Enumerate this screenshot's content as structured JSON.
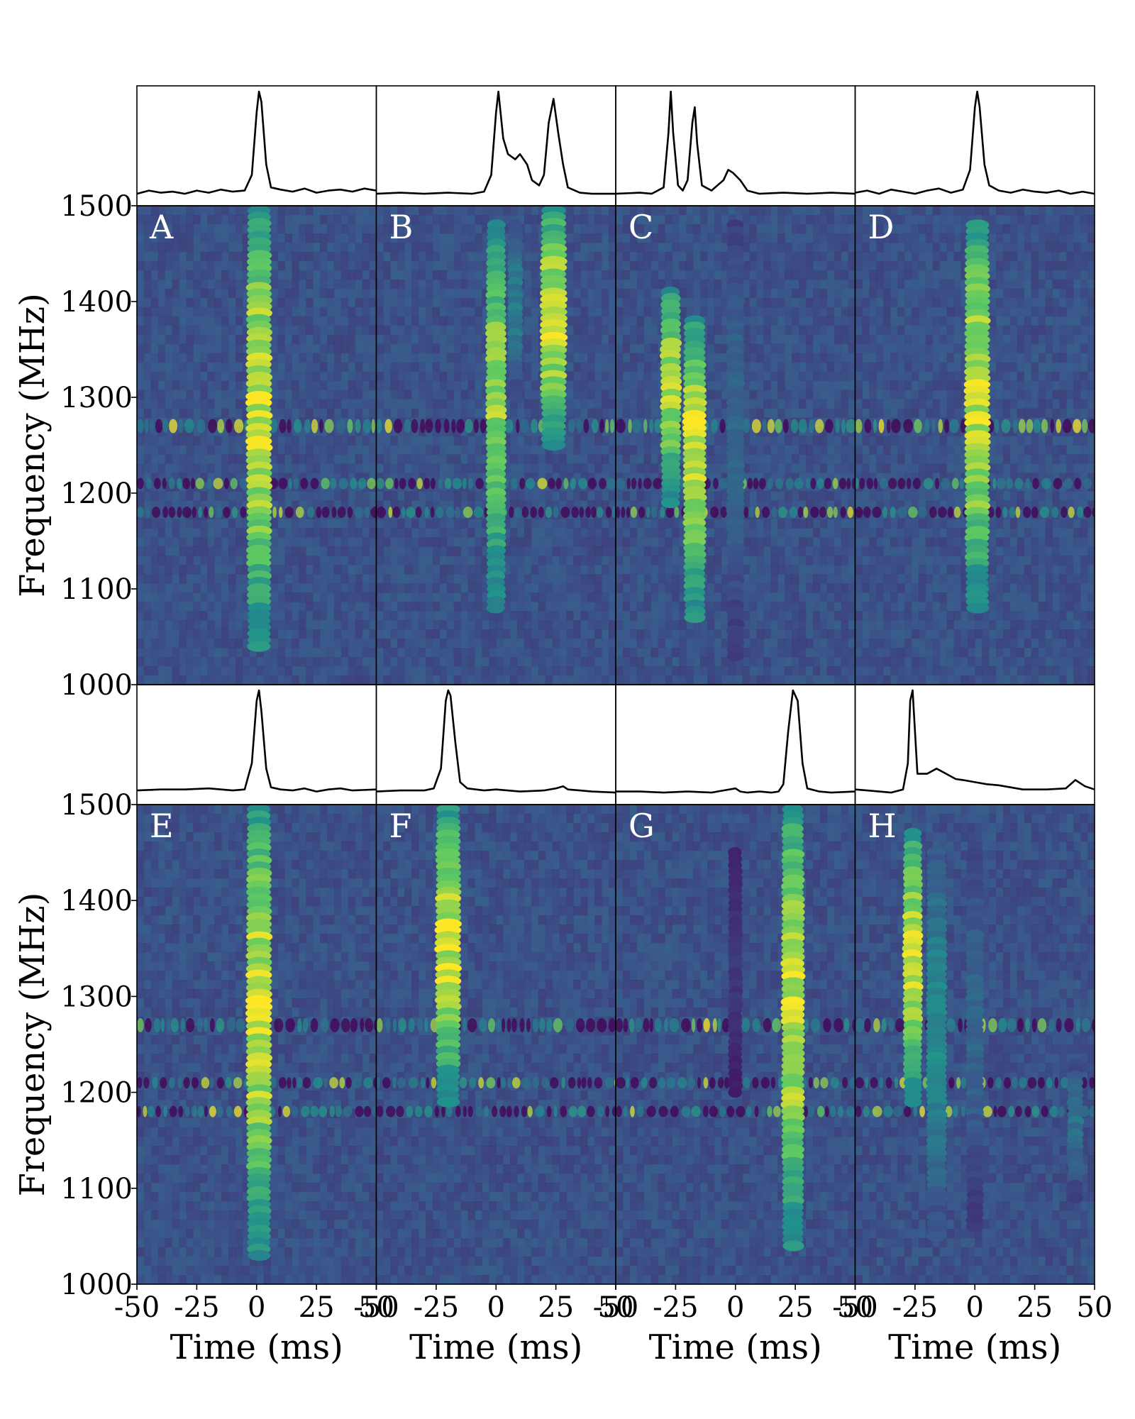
{
  "chart_data": {
    "type": "heatmap",
    "colormap": [
      "#440154",
      "#3b528b",
      "#21918c",
      "#5ec962",
      "#fde725"
    ],
    "background_color": "#3a5e8c",
    "x_axis": {
      "label": "Time (ms)",
      "range": [
        -50,
        50
      ],
      "ticks": [
        -50,
        -25,
        0,
        25,
        50
      ],
      "tick_labels": [
        "-50",
        "-25",
        "0",
        "25",
        "50"
      ]
    },
    "y_axis": {
      "label": "Frequency (MHz)",
      "range": [
        1000,
        1500
      ],
      "ticks": [
        1000,
        1100,
        1200,
        1300,
        1400,
        1500
      ],
      "tick_labels": [
        "1000",
        "1100",
        "1200",
        "1300",
        "1400",
        "1500"
      ]
    },
    "rfi_frequencies_mhz": [
      1270,
      1210,
      1180
    ],
    "panels": [
      {
        "label": "A",
        "components": [
          {
            "t": 1,
            "f_low": 1040,
            "f_high": 1495,
            "peak": 1.0,
            "width": 2.2
          }
        ],
        "profile_x": [
          -50,
          -45,
          -40,
          -35,
          -30,
          -25,
          -20,
          -15,
          -10,
          -5,
          -2,
          0,
          1,
          2,
          4,
          6,
          10,
          15,
          20,
          25,
          30,
          35,
          40,
          45,
          50
        ],
        "profile_y": [
          0.02,
          0.05,
          0.03,
          0.04,
          0.02,
          0.05,
          0.03,
          0.06,
          0.04,
          0.05,
          0.2,
          0.8,
          1.0,
          0.9,
          0.3,
          0.08,
          0.06,
          0.04,
          0.07,
          0.03,
          0.05,
          0.06,
          0.04,
          0.07,
          0.05
        ]
      },
      {
        "label": "B",
        "components": [
          {
            "t": 0,
            "f_low": 1080,
            "f_high": 1480,
            "peak": 0.9,
            "width": 1.8
          },
          {
            "t": 8,
            "f_low": 1300,
            "f_high": 1480,
            "peak": 0.45,
            "width": 1.5
          },
          {
            "t": 24,
            "f_low": 1250,
            "f_high": 1495,
            "peak": 1.0,
            "width": 2.3
          }
        ],
        "profile_x": [
          -50,
          -40,
          -30,
          -20,
          -10,
          -5,
          -2,
          0,
          1,
          3,
          5,
          8,
          10,
          13,
          15,
          18,
          20,
          22,
          24,
          26,
          28,
          30,
          35,
          40,
          50
        ],
        "profile_y": [
          0.02,
          0.03,
          0.02,
          0.03,
          0.02,
          0.04,
          0.2,
          0.8,
          1.0,
          0.55,
          0.4,
          0.35,
          0.4,
          0.3,
          0.15,
          0.1,
          0.2,
          0.7,
          0.93,
          0.6,
          0.3,
          0.08,
          0.03,
          0.02,
          0.02
        ]
      },
      {
        "label": "C",
        "components": [
          {
            "t": -27,
            "f_low": 1190,
            "f_high": 1410,
            "peak": 0.95,
            "width": 1.8
          },
          {
            "t": -17,
            "f_low": 1070,
            "f_high": 1380,
            "peak": 1.0,
            "width": 2.0
          },
          {
            "t": 0,
            "f_low": 1030,
            "f_high": 1480,
            "peak": 0.35,
            "width": 1.8
          }
        ],
        "profile_x": [
          -50,
          -40,
          -35,
          -30,
          -28,
          -27,
          -26,
          -24,
          -22,
          -20,
          -18,
          -17,
          -16,
          -14,
          -10,
          -5,
          -3,
          -1,
          2,
          5,
          10,
          20,
          30,
          40,
          50
        ],
        "profile_y": [
          0.02,
          0.03,
          0.02,
          0.08,
          0.6,
          1.0,
          0.6,
          0.1,
          0.05,
          0.15,
          0.7,
          0.85,
          0.5,
          0.1,
          0.05,
          0.15,
          0.25,
          0.22,
          0.15,
          0.05,
          0.02,
          0.03,
          0.02,
          0.03,
          0.02
        ]
      },
      {
        "label": "D",
        "components": [
          {
            "t": 1,
            "f_low": 1080,
            "f_high": 1480,
            "peak": 1.0,
            "width": 2.2
          }
        ],
        "profile_x": [
          -50,
          -45,
          -40,
          -35,
          -30,
          -25,
          -20,
          -15,
          -10,
          -5,
          -2,
          0,
          1,
          2,
          4,
          6,
          10,
          15,
          20,
          25,
          30,
          35,
          40,
          45,
          50
        ],
        "profile_y": [
          0.03,
          0.05,
          0.02,
          0.06,
          0.04,
          0.02,
          0.05,
          0.07,
          0.03,
          0.06,
          0.25,
          0.85,
          1.0,
          0.85,
          0.3,
          0.1,
          0.05,
          0.03,
          0.06,
          0.04,
          0.03,
          0.05,
          0.02,
          0.04,
          0.02
        ]
      },
      {
        "label": "E",
        "components": [
          {
            "t": 1,
            "f_low": 1030,
            "f_high": 1495,
            "peak": 1.0,
            "width": 2.2
          }
        ],
        "profile_x": [
          -50,
          -40,
          -30,
          -20,
          -10,
          -5,
          -2,
          0,
          1,
          2,
          4,
          6,
          10,
          15,
          20,
          25,
          30,
          35,
          40,
          50
        ],
        "profile_y": [
          0.04,
          0.05,
          0.05,
          0.06,
          0.04,
          0.05,
          0.3,
          0.9,
          1.0,
          0.8,
          0.25,
          0.07,
          0.05,
          0.04,
          0.06,
          0.03,
          0.05,
          0.06,
          0.04,
          0.05
        ]
      },
      {
        "label": "F",
        "components": [
          {
            "t": -20,
            "f_low": 1190,
            "f_high": 1495,
            "peak": 1.0,
            "width": 2.2
          }
        ],
        "profile_x": [
          -50,
          -40,
          -30,
          -26,
          -23,
          -21,
          -20,
          -19,
          -17,
          -15,
          -12,
          -5,
          0,
          10,
          20,
          25,
          28,
          30,
          35,
          40,
          50
        ],
        "profile_y": [
          0.03,
          0.04,
          0.04,
          0.06,
          0.25,
          0.9,
          1.0,
          0.95,
          0.5,
          0.12,
          0.06,
          0.04,
          0.05,
          0.03,
          0.04,
          0.06,
          0.08,
          0.05,
          0.04,
          0.03,
          0.02
        ]
      },
      {
        "label": "G",
        "components": [
          {
            "t": 24,
            "f_low": 1040,
            "f_high": 1495,
            "peak": 1.0,
            "width": 2.0
          },
          {
            "t": 0,
            "f_low": 1200,
            "f_high": 1450,
            "peak": 0.18,
            "width": 1.5
          }
        ],
        "profile_x": [
          -50,
          -40,
          -30,
          -20,
          -10,
          -5,
          0,
          2,
          5,
          10,
          15,
          18,
          20,
          22,
          24,
          26,
          28,
          30,
          35,
          40,
          50
        ],
        "profile_y": [
          0.03,
          0.03,
          0.02,
          0.03,
          0.02,
          0.04,
          0.06,
          0.03,
          0.02,
          0.03,
          0.02,
          0.03,
          0.1,
          0.6,
          1.0,
          0.9,
          0.3,
          0.06,
          0.03,
          0.02,
          0.03
        ]
      },
      {
        "label": "H",
        "components": [
          {
            "t": -26,
            "f_low": 1190,
            "f_high": 1470,
            "peak": 1.0,
            "width": 1.7
          },
          {
            "t": -16,
            "f_low": 1050,
            "f_high": 1450,
            "peak": 0.5,
            "width": 2.0
          },
          {
            "t": 0,
            "f_low": 1060,
            "f_high": 1450,
            "peak": 0.35,
            "width": 1.8
          },
          {
            "t": 42,
            "f_low": 1090,
            "f_high": 1230,
            "peak": 0.4,
            "width": 1.6
          }
        ],
        "profile_x": [
          -50,
          -45,
          -40,
          -35,
          -30,
          -28,
          -27,
          -26,
          -25,
          -24,
          -20,
          -16,
          -12,
          -8,
          -5,
          0,
          5,
          10,
          20,
          30,
          38,
          42,
          46,
          50
        ],
        "profile_y": [
          0.05,
          0.04,
          0.03,
          0.02,
          0.05,
          0.3,
          0.9,
          1.0,
          0.6,
          0.2,
          0.2,
          0.25,
          0.2,
          0.15,
          0.14,
          0.12,
          0.1,
          0.09,
          0.05,
          0.05,
          0.06,
          0.14,
          0.08,
          0.05
        ]
      }
    ]
  }
}
